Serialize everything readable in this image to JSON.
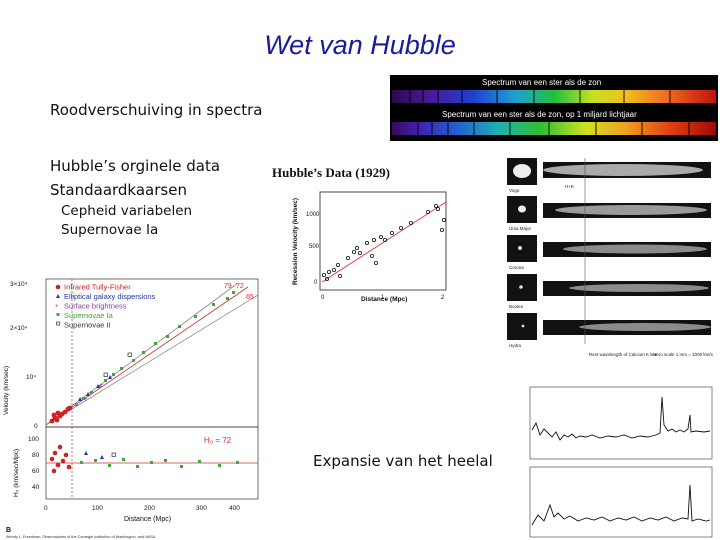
{
  "slide": {
    "title": "Wet van Hubble",
    "bullets": {
      "redshift": "Roodverschuiving in spectra",
      "hubble_data": "Hubble’s orginele data",
      "standard_candles": "Standaardkaarsen",
      "cepheid": "Cepheid variabelen",
      "supernovae": "Supernovae Ia",
      "expansion": "Expansie van het heelal"
    }
  },
  "spectra": {
    "label_sun": "Spectrum van een ster als de zon",
    "label_shifted": "Spectrum van een ster als de zon, op 1 miljard lichtjaar"
  },
  "hubble1929": {
    "title": "Hubble’s Data (1929)",
    "ylabel": "Recession Velocity (km/sec)",
    "xlabel": "Distance (Mpc)",
    "yticks": [
      "1000",
      "500",
      "0"
    ],
    "xticks": [
      "0",
      "1",
      "2"
    ]
  },
  "galaxy_spectra": {
    "rows": [
      "Virgo",
      "Ursa Major",
      "Corona",
      "Bootes",
      "Hydra"
    ],
    "line_label": "H+K",
    "footer_left": "Rest wavelength of Calcium K line",
    "footer_right": "Hero scale 1 mm = 1000 km/s"
  },
  "modern_plot": {
    "legend": [
      "Infrared Tully-Fisher",
      "Elliptical galaxy dispersions",
      "Surface brightness",
      "Supernovae Ia",
      "Supernovae II"
    ],
    "legend_colors": [
      "#d02020",
      "#2233bb",
      "#8a3aa8",
      "#3aa83a",
      "#333333"
    ],
    "top_yticks": [
      "3×10⁴",
      "2×10⁴",
      "10⁴",
      "0"
    ],
    "top_ylabel": "Velocity (km/sec)",
    "fit_labels": [
      "79",
      "72",
      "65"
    ],
    "bottom_yticks": [
      "100",
      "80",
      "60",
      "40"
    ],
    "bottom_ylabel": "H₀ (km/sec/Mpc)",
    "h0_label": "H₀ = 72",
    "xticks": [
      "0",
      "100",
      "200",
      "300",
      "400"
    ],
    "xlabel": "Distance (Mpc)",
    "panel_letter": "B",
    "credit": "Wendy L. Freedman, Observatories of the Carnegie Institution of Washington, and NASA"
  }
}
